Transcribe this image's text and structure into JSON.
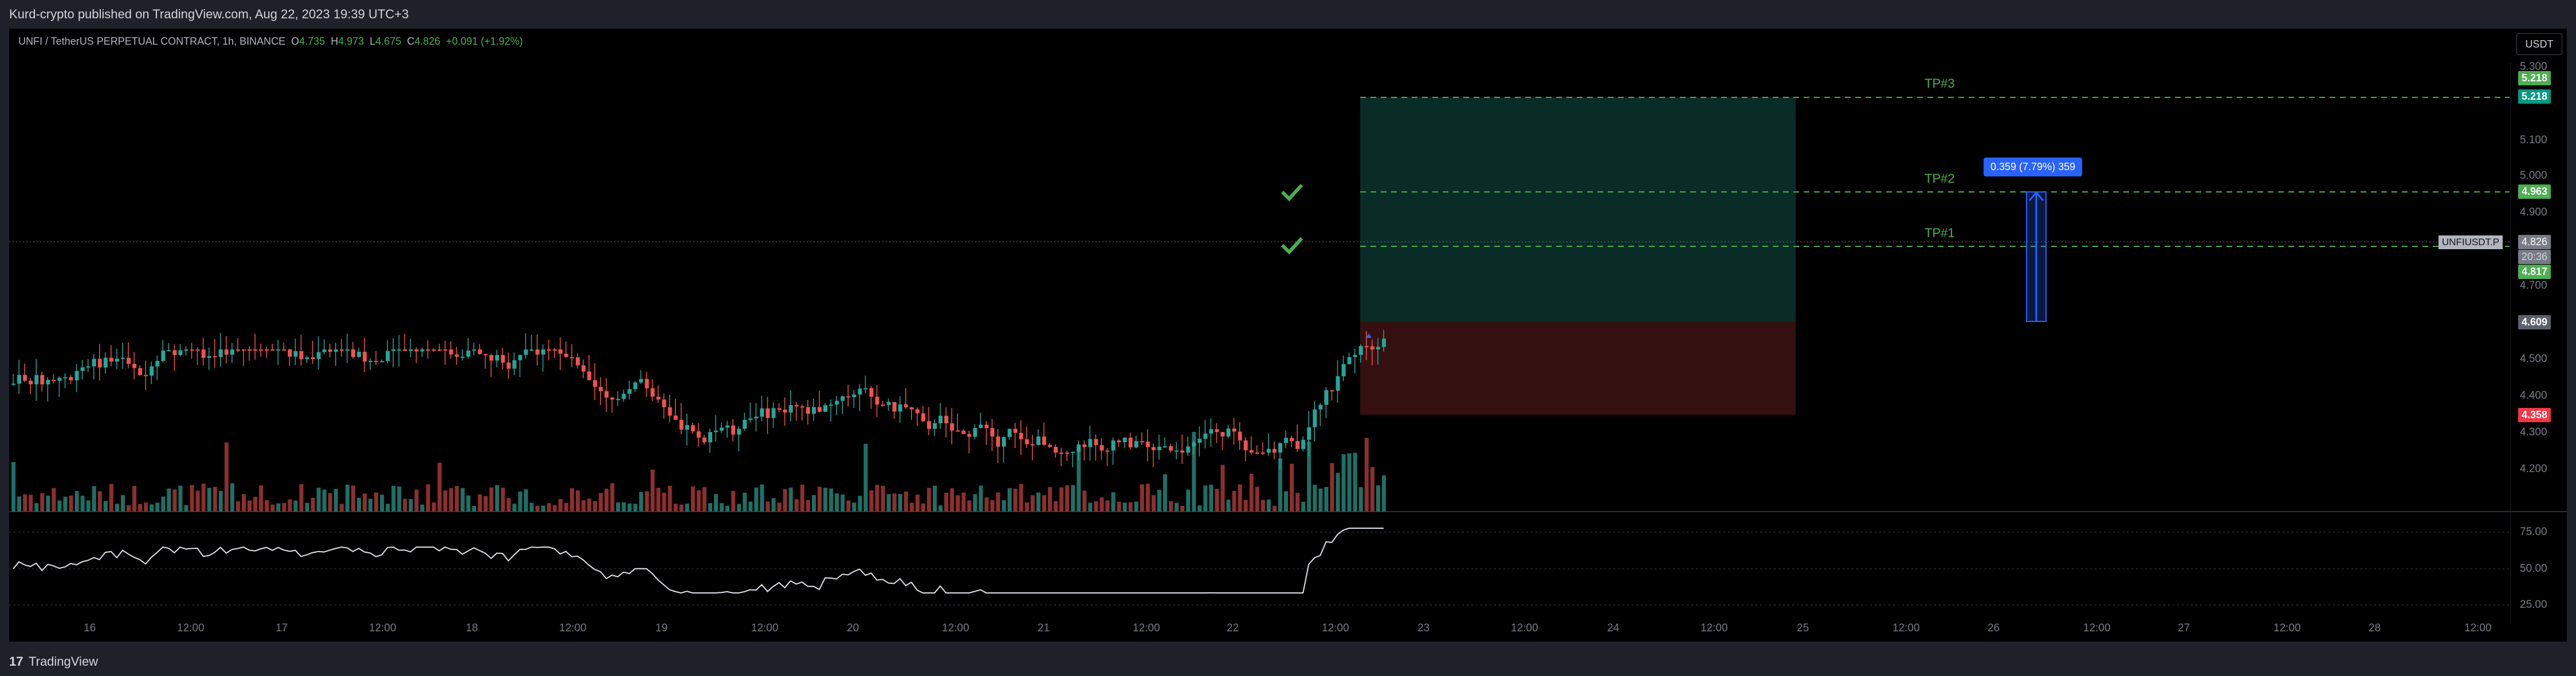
{
  "header": {
    "published": "Kurd-crypto published on TradingView.com, Aug 22, 2023 19:39 UTC+3"
  },
  "legend": {
    "symbol": "UNFI / TetherUS PERPETUAL CONTRACT, 1h, BINANCE",
    "open_label": "O",
    "open": "4.735",
    "high_label": "H",
    "high": "4.973",
    "low_label": "L",
    "low": "4.675",
    "close_label": "C",
    "close": "4.826",
    "change": "+0.091 (+1.92%)"
  },
  "currency_button": "USDT",
  "price_axis": [
    "5.300",
    "5.100",
    "5.000",
    "4.900",
    "4.700",
    "4.500",
    "4.400",
    "4.300",
    "4.200"
  ],
  "rsi_axis": [
    "75.00",
    "50.00",
    "25.00"
  ],
  "price_tags": {
    "tp3_a": "5.218",
    "tp3_b": "5.218",
    "tp2": "4.963",
    "current": "4.826",
    "countdown": "20:36",
    "tp1": "4.817",
    "entry": "4.609",
    "stop": "4.358"
  },
  "symbol_tag": "UNFIUSDT.P",
  "targets": {
    "tp3": "TP#3",
    "tp2": "TP#2",
    "tp1": "TP#1"
  },
  "measure_label": "0.359 (7.79%) 359",
  "time_axis": [
    "16",
    "12:00",
    "17",
    "12:00",
    "18",
    "12:00",
    "19",
    "12:00",
    "20",
    "12:00",
    "21",
    "12:00",
    "22",
    "12:00",
    "23",
    "12:00",
    "24",
    "12:00",
    "25",
    "12:00",
    "26",
    "12:00",
    "27",
    "12:00",
    "28",
    "12:00"
  ],
  "footer": {
    "brand": "TradingView",
    "logo": "17"
  },
  "colors": {
    "up": "#26a69a",
    "down": "#ef5350",
    "target": "#4caf50",
    "stop": "#f23645",
    "measure": "#2962ff"
  }
}
